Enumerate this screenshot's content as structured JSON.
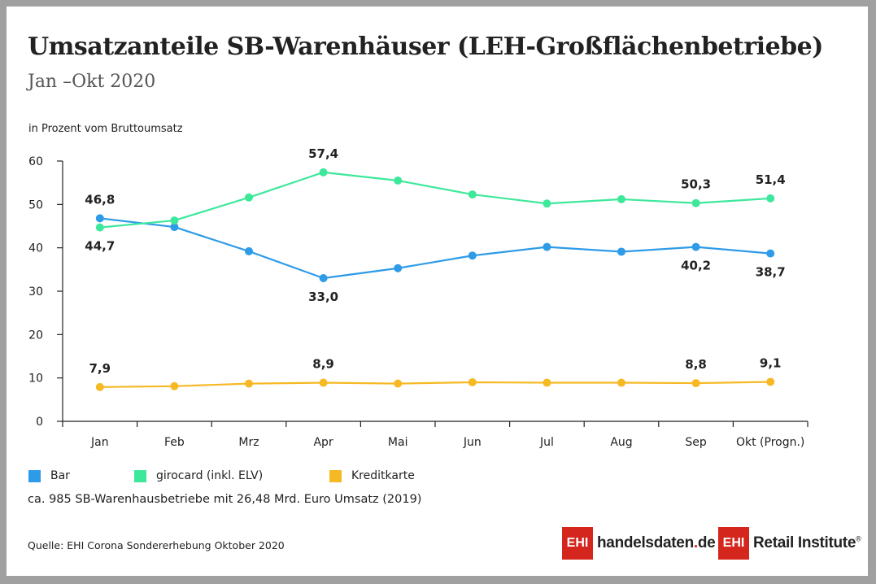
{
  "header": {
    "title": "Umsatzanteile SB-Warenhäuser (LEH-Großflächenbetriebe)",
    "subtitle": "Jan –Okt 2020"
  },
  "chart_data": {
    "type": "line",
    "unit_label": "in Prozent vom Bruttoumsatz",
    "categories": [
      "Jan",
      "Feb",
      "Mrz",
      "Apr",
      "Mai",
      "Jun",
      "Jul",
      "Aug",
      "Sep",
      "Okt (Progn.)"
    ],
    "ylim": [
      0,
      60
    ],
    "yticks": [
      "0",
      "10",
      "20",
      "30",
      "40",
      "50",
      "60"
    ],
    "grid": false,
    "series": [
      {
        "name": "Bar",
        "color": "#2e9be8",
        "values": [
          46.8,
          44.8,
          39.2,
          33.0,
          35.3,
          38.2,
          40.2,
          39.1,
          40.2,
          38.7
        ],
        "labels": [
          {
            "index": 0,
            "text": "46,8",
            "position": "above"
          },
          {
            "index": 3,
            "text": "33,0",
            "position": "below"
          },
          {
            "index": 8,
            "text": "40,2",
            "position": "below"
          },
          {
            "index": 9,
            "text": "38,7",
            "position": "below"
          }
        ]
      },
      {
        "name": "girocard (inkl. ELV)",
        "color": "#3ee89b",
        "values": [
          44.7,
          46.3,
          51.6,
          57.4,
          55.5,
          52.3,
          50.2,
          51.2,
          50.3,
          51.4
        ],
        "labels": [
          {
            "index": 0,
            "text": "44,7",
            "position": "below"
          },
          {
            "index": 3,
            "text": "57,4",
            "position": "above"
          },
          {
            "index": 8,
            "text": "50,3",
            "position": "above"
          },
          {
            "index": 9,
            "text": "51,4",
            "position": "above"
          }
        ]
      },
      {
        "name": "Kreditkarte",
        "color": "#f6b924",
        "values": [
          7.9,
          8.1,
          8.7,
          8.9,
          8.7,
          9.0,
          8.9,
          8.9,
          8.8,
          9.1
        ],
        "labels": [
          {
            "index": 0,
            "text": "7,9",
            "position": "above"
          },
          {
            "index": 3,
            "text": "8,9",
            "position": "above"
          },
          {
            "index": 8,
            "text": "8,8",
            "position": "above"
          },
          {
            "index": 9,
            "text": "9,1",
            "position": "above"
          }
        ]
      }
    ]
  },
  "footer": {
    "note": "ca. 985 SB-Warenhausbetriebe mit 26,48 Mrd. Euro Umsatz (2019)",
    "source": "Quelle: EHI Corona Sondererhebung Oktober 2020"
  },
  "logos": {
    "box_text": "EHI",
    "handelsdaten_main": "handelsdaten",
    "handelsdaten_dot": ".",
    "handelsdaten_tld": "de",
    "retail_text": "Retail Institute",
    "registered": "®"
  }
}
